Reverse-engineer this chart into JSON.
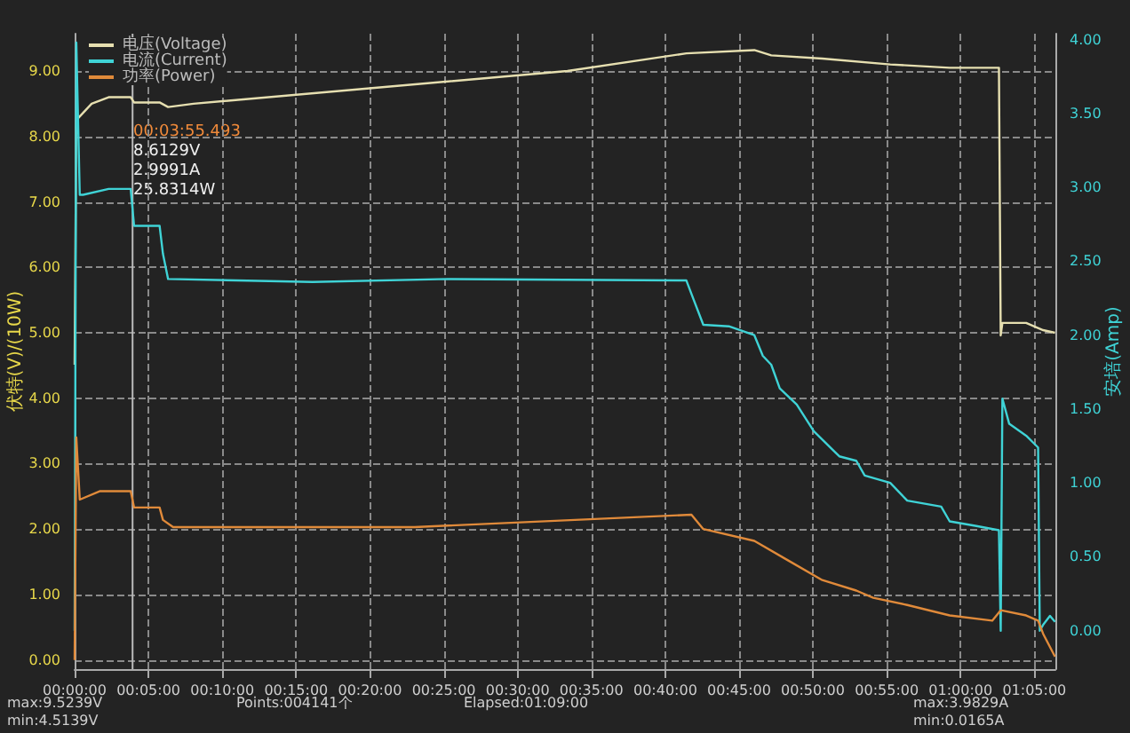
{
  "chart_data": {
    "type": "line",
    "xlim": [
      0,
      1.107
    ],
    "xticks": [
      {
        "value": 0,
        "label": "00:00:00"
      },
      {
        "value": 0.0833,
        "label": "00:05:00"
      },
      {
        "value": 0.1667,
        "label": "00:10:00"
      },
      {
        "value": 0.25,
        "label": "00:15:00"
      },
      {
        "value": 0.3333,
        "label": "00:20:00"
      },
      {
        "value": 0.4167,
        "label": "00:25:00"
      },
      {
        "value": 0.5,
        "label": "00:30:00"
      },
      {
        "value": 0.5833,
        "label": "00:35:00"
      },
      {
        "value": 0.6667,
        "label": "00:40:00"
      },
      {
        "value": 0.75,
        "label": "00:45:00"
      },
      {
        "value": 0.8333,
        "label": "00:50:00"
      },
      {
        "value": 0.9167,
        "label": "00:55:00"
      },
      {
        "value": 1.0,
        "label": "01:00:00"
      },
      {
        "value": 1.0833,
        "label": "01:05:00"
      }
    ],
    "ylim": [
      -0.14,
      9.57
    ],
    "yticks": [
      {
        "value": 0,
        "label": "0.00"
      },
      {
        "value": 1,
        "label": "1.00"
      },
      {
        "value": 2,
        "label": "2.00"
      },
      {
        "value": 3,
        "label": "3.00"
      },
      {
        "value": 4,
        "label": "4.00"
      },
      {
        "value": 5,
        "label": "5.00"
      },
      {
        "value": 6,
        "label": "6.00"
      },
      {
        "value": 7,
        "label": "7.00"
      },
      {
        "value": 8,
        "label": "8.00"
      },
      {
        "value": 9,
        "label": "9.00"
      }
    ],
    "y2lim": [
      -0.26,
      4.04
    ],
    "y2ticks": [
      {
        "value": 0,
        "label": "0.00"
      },
      {
        "value": 0.5,
        "label": "0.50"
      },
      {
        "value": 1,
        "label": "1.00"
      },
      {
        "value": 1.5,
        "label": "1.50"
      },
      {
        "value": 2,
        "label": "2.00"
      },
      {
        "value": 2.5,
        "label": "2.50"
      },
      {
        "value": 3,
        "label": "3.00"
      },
      {
        "value": 3.5,
        "label": "3.50"
      },
      {
        "value": 4,
        "label": "4.00"
      }
    ],
    "ylabel": "伏特(V)/(10W)",
    "y2label": "安培(Amp)",
    "grid": true,
    "legend": "top left",
    "ref_lines": [
      {
        "axis": "x",
        "value": 0.0654,
        "color": "#bbbbbb"
      }
    ],
    "annotations": [
      "00:03:55.493",
      "8.6129V",
      "2.9991A",
      "25.8314W",
      "max:9.5239V",
      "min:4.5139V",
      "Points:004141个",
      "Elapsed:01:09:00",
      "max:3.9829A",
      "min:0.0165A"
    ],
    "series": [
      {
        "name": "电压(Voltage)",
        "color": "#e6dfb0",
        "x": [
          0,
          0.0019,
          0.0192,
          0.0384,
          0.0633,
          0.0671,
          0.0959,
          0.1055,
          0.1343,
          0.5562,
          0.6905,
          0.7672,
          0.7863,
          0.8439,
          0.9206,
          0.9877,
          1.0433,
          1.0453,
          1.0472,
          1.074,
          1.0932,
          1.1066
        ],
        "values": [
          4.51,
          8.25,
          8.5,
          8.6,
          8.6,
          8.52,
          8.52,
          8.45,
          8.5,
          9.0,
          9.27,
          9.32,
          9.24,
          9.19,
          9.1,
          9.05,
          9.05,
          4.96,
          5.15,
          5.15,
          5.04,
          5.0
        ]
      },
      {
        "name": "电流(Current)",
        "color": "#3fd3d6",
        "axis": "y2",
        "x": [
          0,
          0.0019,
          0.0058,
          0.0096,
          0.0384,
          0.0633,
          0.0671,
          0.0959,
          0.0997,
          0.1055,
          0.2685,
          0.4219,
          0.6905,
          0.6981,
          0.7096,
          0.7384,
          0.7672,
          0.7768,
          0.7863,
          0.7959,
          0.8151,
          0.8343,
          0.8631,
          0.8823,
          0.8918,
          0.9206,
          0.9398,
          0.9781,
          0.9877,
          1.0165,
          1.0433,
          1.0453,
          1.0472,
          1.0549,
          1.074,
          1.0875,
          1.0894,
          1.0932,
          1.1009,
          1.1066
        ],
        "values": [
          0,
          3.98,
          2.95,
          2.95,
          2.99,
          2.99,
          2.74,
          2.74,
          2.55,
          2.38,
          2.36,
          2.38,
          2.37,
          2.25,
          2.07,
          2.06,
          2.0,
          1.86,
          1.8,
          1.64,
          1.53,
          1.35,
          1.18,
          1.15,
          1.05,
          1.0,
          0.88,
          0.84,
          0.74,
          0.71,
          0.68,
          0.0,
          1.57,
          1.4,
          1.32,
          1.24,
          0.0,
          0.04,
          0.1,
          0.06
        ]
      },
      {
        "name": "功率(Power)",
        "color": "#e08a3a",
        "x": [
          0,
          0.0019,
          0.0058,
          0.0288,
          0.0633,
          0.0671,
          0.0959,
          0.0997,
          0.1112,
          0.3836,
          0.6962,
          0.7096,
          0.7672,
          0.8055,
          0.8439,
          0.8823,
          0.9014,
          0.9398,
          0.9877,
          1.0357,
          1.0453,
          1.074,
          1.0875,
          1.0932,
          1.1066
        ],
        "values": [
          0,
          3.4,
          2.45,
          2.58,
          2.58,
          2.33,
          2.33,
          2.14,
          2.03,
          2.03,
          2.22,
          2.0,
          1.82,
          1.52,
          1.22,
          1.06,
          0.95,
          0.84,
          0.68,
          0.6,
          0.76,
          0.68,
          0.6,
          0.4,
          0.05
        ]
      }
    ]
  }
}
